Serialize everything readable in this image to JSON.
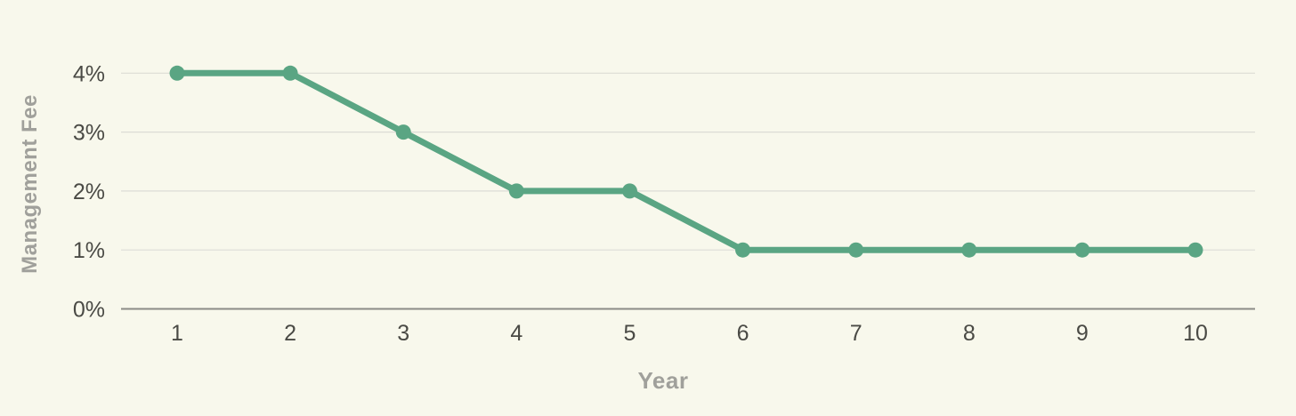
{
  "chart_data": {
    "type": "line",
    "title": "",
    "xlabel": "Year",
    "ylabel": "Management Fee",
    "x": [
      1,
      2,
      3,
      4,
      5,
      6,
      7,
      8,
      9,
      10
    ],
    "series": [
      {
        "name": "Management Fee",
        "values": [
          4,
          4,
          3,
          2,
          2,
          1,
          1,
          1,
          1,
          1
        ]
      }
    ],
    "x_tick_labels": [
      "1",
      "2",
      "3",
      "4",
      "5",
      "6",
      "7",
      "8",
      "9",
      "10"
    ],
    "y_ticks": [
      {
        "value": 0,
        "label": "0%"
      },
      {
        "value": 1,
        "label": "1%"
      },
      {
        "value": 2,
        "label": "2%"
      },
      {
        "value": 3,
        "label": "3%"
      },
      {
        "value": 4,
        "label": "4%"
      }
    ],
    "ylim": [
      0,
      4
    ],
    "grid": "horizontal",
    "legend": "none",
    "colors": {
      "line": "#5aa583",
      "marker": "#5aa583",
      "background": "#f8f8ec",
      "gridline": "#dcdcd6",
      "axis_line": "#8b8b86",
      "tick_text": "#4a4a45",
      "axis_title_text": "#a0a09b"
    }
  }
}
